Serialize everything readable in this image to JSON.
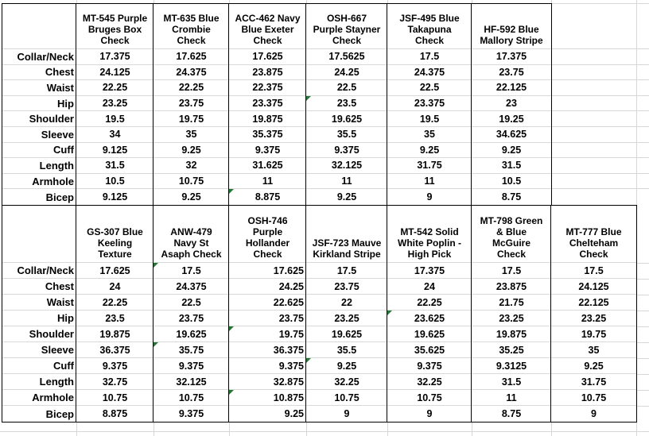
{
  "app": {
    "description": "Spreadsheet of shirt measurement specifications by fabric"
  },
  "colors": {
    "cell_border": "#000000",
    "gridline": "#d6d6d6",
    "flag_green": "#1e7b34",
    "text": "#000000",
    "background": "#ffffff"
  },
  "tables": [
    {
      "id": "top",
      "corner_label": "",
      "row_labels": [
        "Collar/Neck",
        "Chest",
        "Waist",
        "Hip",
        "Shoulder",
        "Sleeve",
        "Cuff",
        "Length",
        "Armhole",
        "Bicep"
      ],
      "columns": [
        {
          "header": "MT-545 Purple\nBruges Box\nCheck",
          "values": [
            "17.375",
            "24.125",
            "22.25",
            "23.25",
            "19.5",
            "34",
            "9.125",
            "31.5",
            "10.5",
            "9.125"
          ]
        },
        {
          "header": "MT-635 Blue\nCrombie\nCheck",
          "values": [
            "17.625",
            "24.375",
            "22.25",
            "23.75",
            "19.75",
            "35",
            "9.25",
            "32",
            "10.75",
            "9.25"
          ]
        },
        {
          "header": "ACC-462 Navy\nBlue Exeter\nCheck",
          "values": [
            "17.625",
            "23.875",
            "22.375",
            "23.375",
            "19.875",
            "35.375",
            "9.375",
            "31.625",
            "11",
            "8.875"
          ]
        },
        {
          "header": "OSH-667\nPurple Stayner\nCheck",
          "values": [
            "17.5625",
            "24.25",
            "22.5",
            "23.5",
            "19.625",
            "35.5",
            "9.375",
            "32.125",
            "11",
            "9.25"
          ]
        },
        {
          "header": "JSF-495 Blue\nTakapuna\nCheck",
          "values": [
            "17.5",
            "24.375",
            "22.5",
            "23.375",
            "19.5",
            "35",
            "9.25",
            "31.75",
            "11",
            "9"
          ]
        },
        {
          "header": "HF-592 Blue\nMallory Stripe",
          "values": [
            "17.375",
            "23.75",
            "22.125",
            "23",
            "19.25",
            "34.625",
            "9.25",
            "31.5",
            "10.5",
            "8.75"
          ]
        }
      ],
      "right_aligned_columns": [],
      "flags": [
        {
          "row": 3,
          "col": 3
        },
        {
          "row": 9,
          "col": 2
        }
      ]
    },
    {
      "id": "bottom",
      "corner_label": "",
      "row_labels": [
        "Collar/Neck",
        "Chest",
        "Waist",
        "Hip",
        "Shoulder",
        "Sleeve",
        "Cuff",
        "Length",
        "Armhole",
        "Bicep"
      ],
      "columns": [
        {
          "header": "GS-307 Blue\nKeeling\nTexture",
          "values": [
            "17.625",
            "24",
            "22.25",
            "23.5",
            "19.875",
            "36.375",
            "9.375",
            "32.75",
            "10.75",
            "8.875"
          ]
        },
        {
          "header": "ANW-479\nNavy St\nAsaph Check",
          "values": [
            "17.5",
            "24.375",
            "22.5",
            "23.75",
            "19.625",
            "35.75",
            "9.375",
            "32.125",
            "10.75",
            "9.375"
          ]
        },
        {
          "header": "OSH-746\nPurple\nHollander\nCheck",
          "values": [
            "17.625",
            "24.25",
            "22.625",
            "23.75",
            "19.75",
            "36.375",
            "9.375",
            "32.875",
            "10.875",
            "9.25"
          ]
        },
        {
          "header": "JSF-723 Mauve\nKirkland Stripe",
          "values": [
            "17.5",
            "23.75",
            "22",
            "23.25",
            "19.625",
            "35.5",
            "9.25",
            "32.25",
            "10.75",
            "9"
          ]
        },
        {
          "header": "MT-542 Solid\nWhite Poplin -\nHigh Pick",
          "values": [
            "17.375",
            "24",
            "22.25",
            "23.625",
            "19.625",
            "35.625",
            "9.375",
            "32.25",
            "10.75",
            "9"
          ]
        },
        {
          "header": "MT-798 Green\n& Blue\nMcGuire\nCheck",
          "values": [
            "17.5",
            "23.875",
            "21.75",
            "23.25",
            "19.875",
            "35.25",
            "9.3125",
            "31.5",
            "11",
            "8.75"
          ]
        },
        {
          "header": "MT-777 Blue\nChelteham\nCheck",
          "values": [
            "17.5",
            "24.125",
            "22.125",
            "23.25",
            "19.75",
            "35",
            "9.25",
            "31.75",
            "10.75",
            "9"
          ]
        }
      ],
      "right_aligned_columns": [
        2
      ],
      "flags": [
        {
          "row": 0,
          "col": 1
        },
        {
          "row": 3,
          "col": 4
        },
        {
          "row": 4,
          "col": 2
        },
        {
          "row": 5,
          "col": 1
        },
        {
          "row": 6,
          "col": 3
        },
        {
          "row": 8,
          "col": 2
        }
      ]
    }
  ]
}
